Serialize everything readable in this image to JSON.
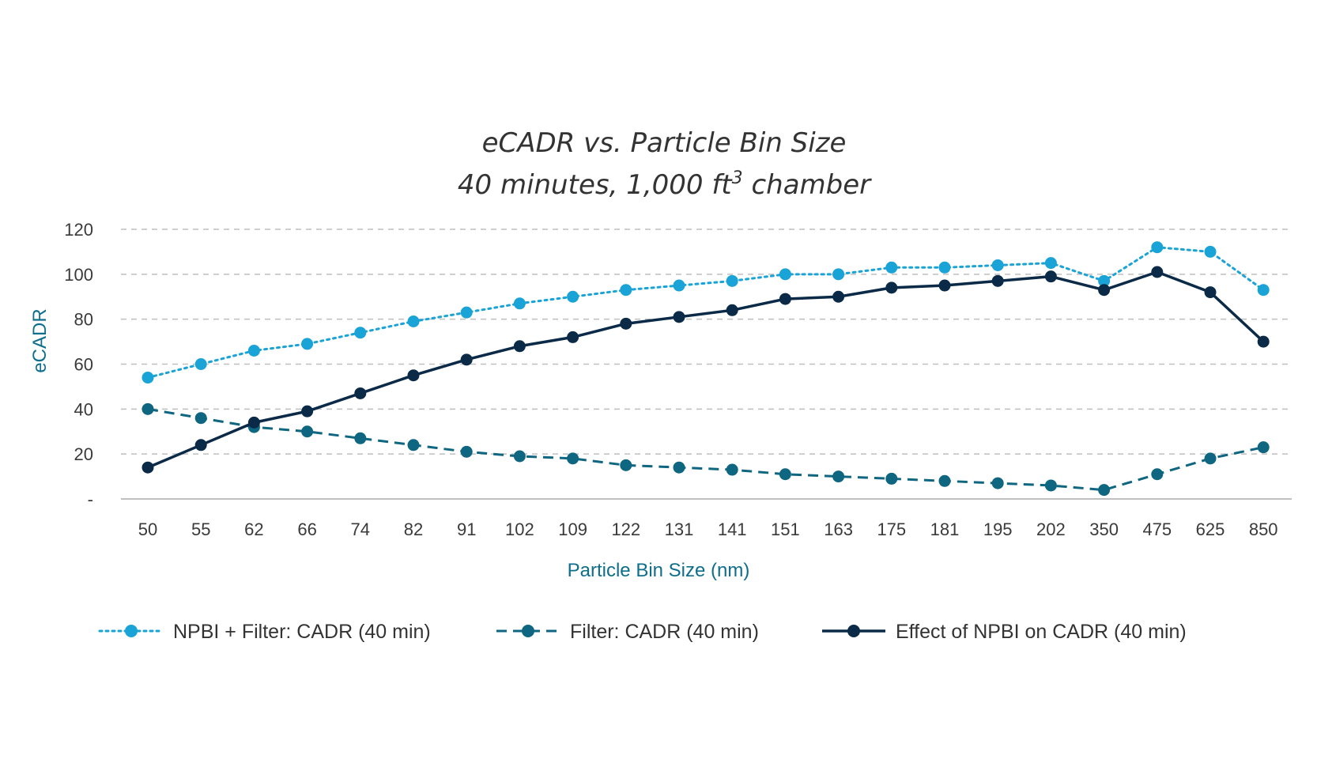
{
  "chart_data": {
    "type": "line",
    "title": "eCADR vs. Particle Bin Size",
    "subtitle": "40 minutes, 1,000 ft",
    "subtitle_superscript": "3",
    "subtitle_suffix": " chamber",
    "xlabel": "Particle Bin Size (nm)",
    "ylabel": "eCADR",
    "categories": [
      "50",
      "55",
      "62",
      "66",
      "74",
      "82",
      "91",
      "102",
      "109",
      "122",
      "131",
      "141",
      "151",
      "163",
      "175",
      "181",
      "195",
      "202",
      "350",
      "475",
      "625",
      "850"
    ],
    "yticks": [
      0,
      20,
      40,
      60,
      80,
      100,
      120
    ],
    "ytick_labels": [
      "-",
      "20",
      "40",
      "60",
      "80",
      "100",
      "120"
    ],
    "ylim": [
      0,
      120
    ],
    "grid": true,
    "legend_position": "bottom",
    "series": [
      {
        "name": "NPBI + Filter: CADR (40 min)",
        "style": "dotted",
        "color": "#1aa3d6",
        "values": [
          54,
          60,
          66,
          69,
          74,
          79,
          83,
          87,
          90,
          93,
          95,
          97,
          100,
          100,
          103,
          103,
          104,
          105,
          97,
          112,
          110,
          93
        ]
      },
      {
        "name": "Filter: CADR (40 min)",
        "style": "dashed",
        "color": "#0f6680",
        "values": [
          40,
          36,
          32,
          30,
          27,
          24,
          21,
          19,
          18,
          15,
          14,
          13,
          11,
          10,
          9,
          8,
          7,
          6,
          4,
          11,
          18,
          23
        ]
      },
      {
        "name": "Effect of NPBI on CADR (40 min)",
        "style": "solid",
        "color": "#0a2a47",
        "values": [
          14,
          24,
          34,
          39,
          47,
          55,
          62,
          68,
          72,
          78,
          81,
          84,
          89,
          90,
          94,
          95,
          97,
          99,
          93,
          101,
          92,
          70
        ]
      }
    ]
  }
}
